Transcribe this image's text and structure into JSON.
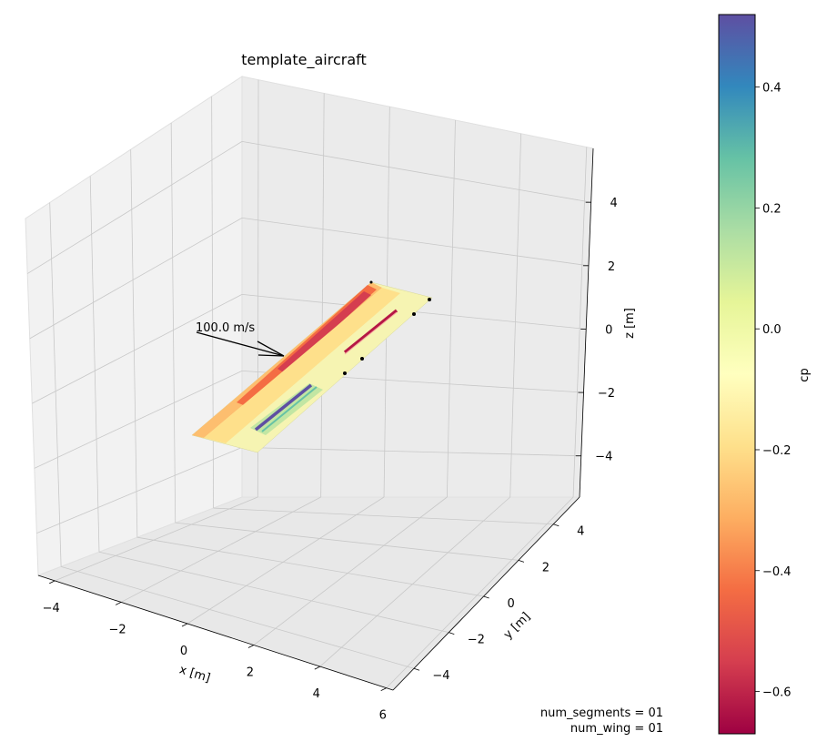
{
  "chart_data": {
    "type": "surface3d",
    "title": "template_aircraft",
    "axes": {
      "x": {
        "label": "x [m]",
        "ticks": [
          -4,
          -2,
          0,
          2,
          4,
          6
        ],
        "tick_labels": [
          "−4",
          "−2",
          "0",
          "2",
          "4",
          "6"
        ]
      },
      "y": {
        "label": "y [m]",
        "ticks": [
          -4,
          -2,
          0,
          2,
          4
        ],
        "tick_labels": [
          "−4",
          "−2",
          "0",
          "2",
          "4"
        ]
      },
      "z": {
        "label": "z [m]",
        "ticks": [
          -4,
          -2,
          0,
          2,
          4
        ],
        "tick_labels": [
          "−4",
          "−2",
          "0",
          "2",
          "4"
        ]
      }
    },
    "grid": true,
    "velocity_vector": {
      "label": "100.0 m/s"
    },
    "colorbar": {
      "label": "cp",
      "min": -0.67,
      "max": 0.52,
      "ticks": [
        -0.6,
        -0.4,
        -0.2,
        0.0,
        0.2,
        0.4
      ],
      "tick_labels": [
        "−0.6",
        "−0.4",
        "−0.2",
        "0.0",
        "0.2",
        "0.4"
      ],
      "colormap": "Spectral",
      "colors": [
        "#9e0142",
        "#d53e4f",
        "#f46d43",
        "#fdae61",
        "#fee08b",
        "#ffffbf",
        "#e6f598",
        "#abdda4",
        "#66c2a5",
        "#3288bd",
        "#5e4fa2"
      ]
    },
    "annotations": [
      "num_segments = 01",
      "num_wing = 01"
    ]
  }
}
